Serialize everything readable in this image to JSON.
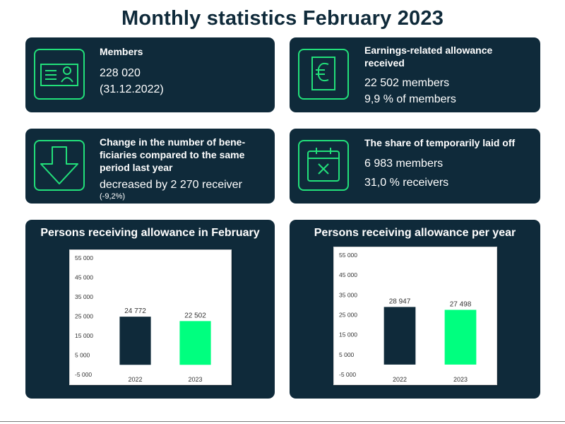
{
  "page": {
    "title": "Monthly statistics February 2023"
  },
  "cards": {
    "members": {
      "heading": "Members",
      "line1": "228 020",
      "line2": "(31.12.2022)",
      "icon": "id-card-icon"
    },
    "earnings": {
      "heading_line1": "Earnings-related allowance",
      "heading_line2": "received",
      "line1": "22 502 members",
      "line2": "9,9 % of members",
      "icon": "euro-icon"
    },
    "change": {
      "heading_line1": "Change in the number of bene-",
      "heading_line2": "ficiaries compared to the same",
      "heading_line3": "period last year",
      "line1": "decreased by 2 270 receiver",
      "line2": "(-9,2%)",
      "icon": "down-arrow-icon"
    },
    "laidoff": {
      "heading": "The share of temporarily laid off",
      "line1": "6 983 members",
      "line2": "31,0 % receivers",
      "icon": "calendar-x-icon"
    }
  },
  "colors": {
    "navy": "#0f2a3a",
    "green": "#00ff7f",
    "icon_green": "#22e07a"
  },
  "chart_data": [
    {
      "type": "bar",
      "title": "Persons receiving allowance in February",
      "categories": [
        "2022",
        "2023"
      ],
      "values": [
        24772,
        22502
      ],
      "value_labels": [
        "24 772",
        "22 502"
      ],
      "bar_colors": [
        "#0f2a3a",
        "#00ff7f"
      ],
      "yticks": [
        "55 000",
        "45 000",
        "35 000",
        "25 000",
        "15 000",
        "5 000",
        "-5 000"
      ],
      "ylim": [
        -5000,
        55000
      ],
      "grid": false,
      "legend": "none"
    },
    {
      "type": "bar",
      "title": "Persons receiving allowance per year",
      "categories": [
        "2022",
        "2023"
      ],
      "values": [
        28947,
        27498
      ],
      "value_labels": [
        "28 947",
        "27 498"
      ],
      "bar_colors": [
        "#0f2a3a",
        "#00ff7f"
      ],
      "yticks": [
        "55 000",
        "45 000",
        "35 000",
        "25 000",
        "15 000",
        "5 000",
        "-5 000"
      ],
      "ylim": [
        -5000,
        55000
      ],
      "grid": false,
      "legend": "none"
    }
  ]
}
